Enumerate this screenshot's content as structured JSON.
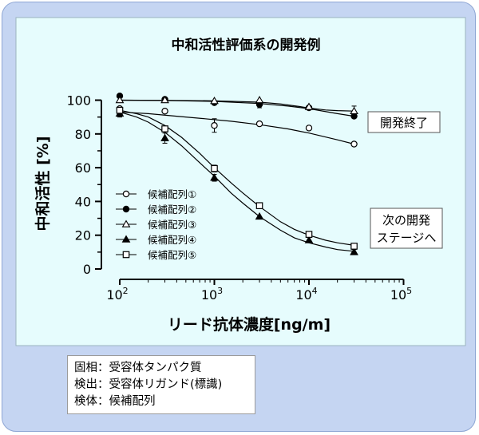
{
  "chart_data": {
    "type": "line",
    "title": "中和活性評価系の開発例",
    "xlabel": "リード抗体濃度[ng/m]",
    "ylabel": "中和活性 [%]",
    "x_scale": "log",
    "xlim": [
      100,
      100000
    ],
    "ylim": [
      0,
      100
    ],
    "x_ticks": [
      {
        "value": 100,
        "base": "10",
        "exp": "2"
      },
      {
        "value": 1000,
        "base": "10",
        "exp": "3"
      },
      {
        "value": 10000,
        "base": "10",
        "exp": "4"
      },
      {
        "value": 100000,
        "base": "10",
        "exp": "5"
      }
    ],
    "y_ticks": [
      0,
      20,
      40,
      60,
      80,
      100
    ],
    "grid": false,
    "legend_position": "left",
    "series": [
      {
        "name": "候補配列①",
        "marker": "circle-open",
        "x": [
          100,
          300,
          1000,
          3000,
          10000,
          30000
        ],
        "y": [
          95,
          93.5,
          85,
          86,
          83.5,
          74
        ],
        "err": [
          0,
          0,
          4,
          0,
          0,
          0
        ],
        "fit_x": [
          100,
          200,
          400,
          800,
          1500,
          3000,
          6000,
          10000,
          20000,
          30000
        ],
        "fit_y": [
          93,
          92,
          90.5,
          89,
          87.5,
          85.5,
          83,
          80.5,
          76.5,
          74
        ]
      },
      {
        "name": "候補配列②",
        "marker": "circle-filled",
        "x": [
          100,
          300,
          1000,
          3000,
          10000,
          30000
        ],
        "y": [
          102.5,
          100.5,
          98.5,
          97.5,
          95.5,
          90.5
        ],
        "err": [
          0,
          0,
          0,
          2,
          0,
          0
        ],
        "fit_x": [
          100,
          300,
          1000,
          3000,
          6000,
          10000,
          20000,
          30000
        ],
        "fit_y": [
          100,
          99.8,
          99.3,
          98,
          96.5,
          95,
          92,
          90.5
        ]
      },
      {
        "name": "候補配列③",
        "marker": "triangle-open",
        "x": [
          100,
          300,
          1000,
          3000,
          10000,
          30000
        ],
        "y": [
          100,
          100,
          99.5,
          100,
          96,
          93.5
        ],
        "err": [
          0,
          0,
          0,
          0,
          0,
          3
        ],
        "fit_x": [
          100,
          300,
          1000,
          3000,
          5000,
          8000,
          10000,
          15000,
          20000,
          30000
        ],
        "fit_y": [
          100,
          99.9,
          99.6,
          98.8,
          97.8,
          96.2,
          95.3,
          94.2,
          93.8,
          93.5
        ]
      },
      {
        "name": "候補配列④",
        "marker": "triangle-filled",
        "x": [
          100,
          300,
          1000,
          3000,
          10000,
          30000
        ],
        "y": [
          92,
          77.5,
          54,
          31,
          17,
          10
        ],
        "err": [
          2,
          3,
          2,
          0,
          0,
          1.5
        ],
        "fit_x": [
          100,
          150,
          200,
          300,
          450,
          700,
          1000,
          1500,
          2000,
          3000,
          5000,
          7000,
          10000,
          15000,
          20000,
          30000
        ],
        "fit_y": [
          93,
          90,
          87,
          81,
          73,
          63,
          55,
          45,
          39,
          31,
          23,
          18.5,
          15.5,
          13,
          11.5,
          10.5
        ]
      },
      {
        "name": "候補配列⑤",
        "marker": "square-open",
        "x": [
          100,
          300,
          1000,
          3000,
          10000,
          30000
        ],
        "y": [
          94,
          83,
          59.5,
          37.5,
          20.5,
          13.5
        ],
        "err": [
          0,
          0,
          2,
          0,
          0,
          0
        ],
        "fit_x": [
          100,
          150,
          200,
          300,
          450,
          700,
          1000,
          1500,
          2000,
          3000,
          5000,
          7000,
          10000,
          15000,
          20000,
          30000
        ],
        "fit_y": [
          94,
          92,
          90,
          85,
          78,
          68.5,
          60,
          51,
          45,
          37,
          28,
          23.5,
          20,
          17,
          15.5,
          14
        ]
      }
    ],
    "annotations": {
      "end": "開発終了",
      "next": [
        "次の開発",
        "ステージへ"
      ]
    }
  },
  "notes": [
    "固相：受容体タンパク質",
    "検出：受容体リガンド(標識)",
    "検体：候補配列"
  ],
  "colors": {
    "outer_background": "#c5d5f2",
    "outer_border": "#8ea6d4",
    "chart_background": "#e6fcfd",
    "ink": "#000000"
  }
}
